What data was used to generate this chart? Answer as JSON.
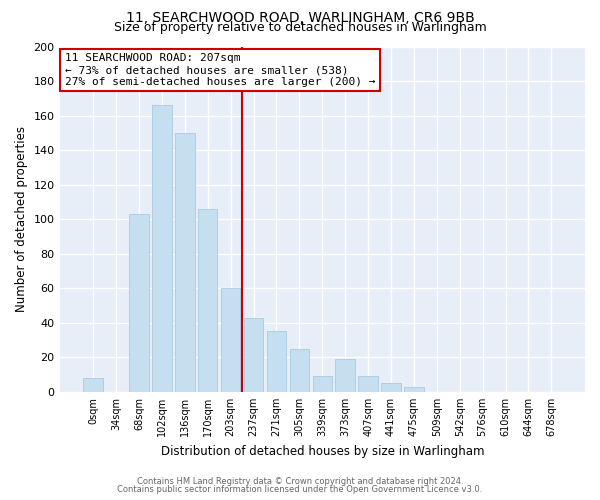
{
  "title": "11, SEARCHWOOD ROAD, WARLINGHAM, CR6 9BB",
  "subtitle": "Size of property relative to detached houses in Warlingham",
  "xlabel": "Distribution of detached houses by size in Warlingham",
  "ylabel": "Number of detached properties",
  "bar_labels": [
    "0sqm",
    "34sqm",
    "68sqm",
    "102sqm",
    "136sqm",
    "170sqm",
    "203sqm",
    "237sqm",
    "271sqm",
    "305sqm",
    "339sqm",
    "373sqm",
    "407sqm",
    "441sqm",
    "475sqm",
    "509sqm",
    "542sqm",
    "576sqm",
    "610sqm",
    "644sqm",
    "678sqm"
  ],
  "bar_values": [
    8,
    0,
    103,
    166,
    150,
    106,
    60,
    43,
    35,
    25,
    9,
    19,
    9,
    5,
    3,
    0,
    0,
    0,
    0,
    0,
    0
  ],
  "bar_color": "#c5dff0",
  "bar_edge_color": "#a0c4e0",
  "annotation_box_title": "11 SEARCHWOOD ROAD: 207sqm",
  "annotation_line1": "← 73% of detached houses are smaller (538)",
  "annotation_line2": "27% of semi-detached houses are larger (200) →",
  "annotation_box_color": "#ffffff",
  "annotation_box_edgecolor": "#cc0000",
  "vline_x": 6.5,
  "ylim": [
    0,
    200
  ],
  "yticks": [
    0,
    20,
    40,
    60,
    80,
    100,
    120,
    140,
    160,
    180,
    200
  ],
  "footer1": "Contains HM Land Registry data © Crown copyright and database right 2024.",
  "footer2": "Contains public sector information licensed under the Open Government Licence v3.0.",
  "bg_color": "#ffffff",
  "plot_bg_color": "#e8eef8",
  "grid_color": "#ffffff",
  "title_fontsize": 10,
  "subtitle_fontsize": 9
}
